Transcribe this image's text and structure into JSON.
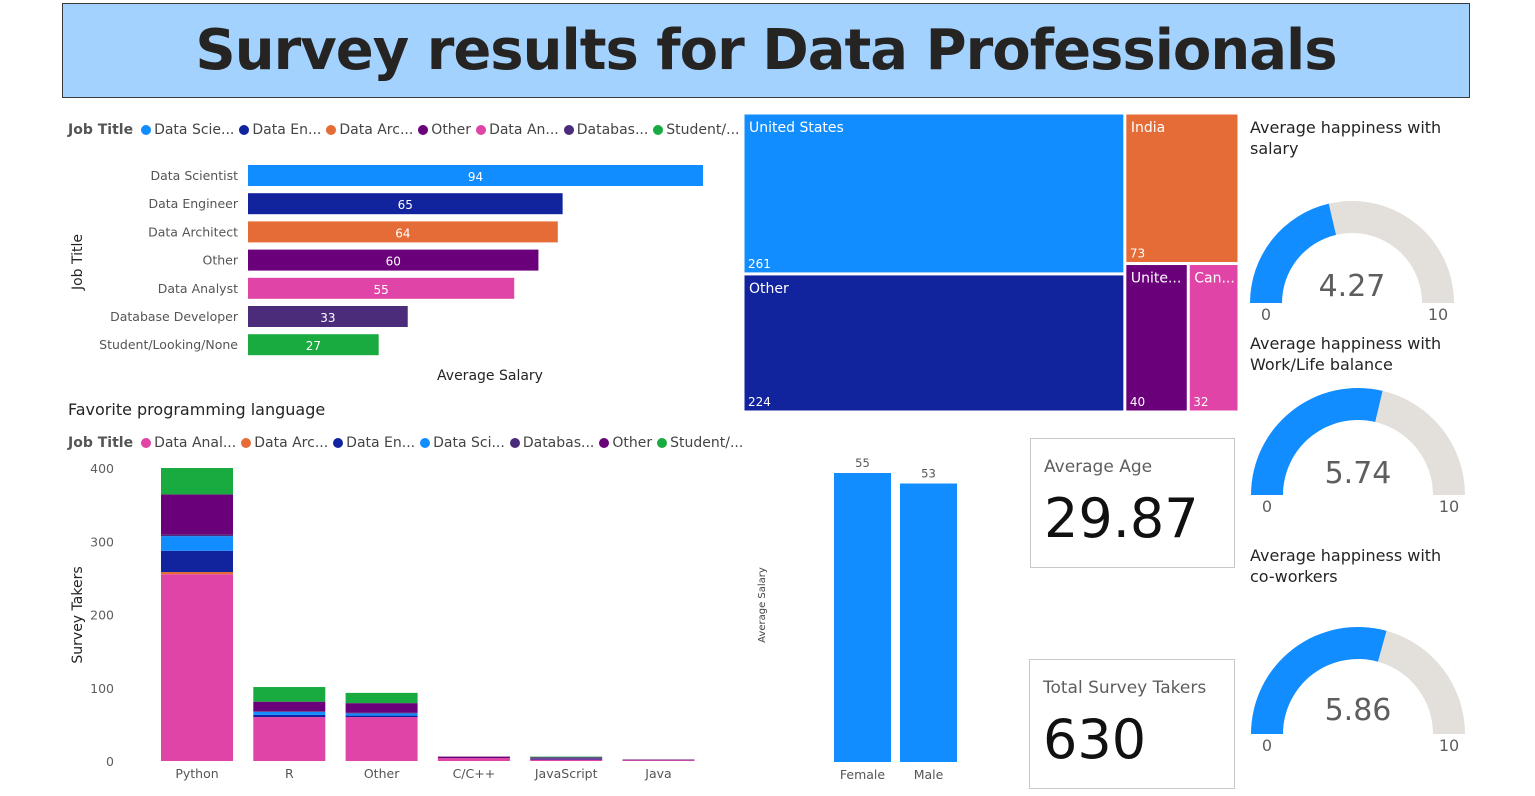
{
  "title": "Survey results for Data Professionals",
  "colors": {
    "Data Scientist": "#118dff",
    "Data Engineer": "#12239e",
    "Data Architect": "#e66c37",
    "Other": "#6b007b",
    "Data Analyst": "#e044a7",
    "Database Developer": "#4a2c7a",
    "Student/Looking/None": "#1aab40",
    "gauge_rest": "#e3dfda"
  },
  "legend1": {
    "title": "Job Title",
    "items": [
      "Data Scie...",
      "Data En...",
      "Data Arc...",
      "Other",
      "Data An...",
      "Databas...",
      "Student/..."
    ],
    "colors": [
      "#118dff",
      "#12239e",
      "#e66c37",
      "#6b007b",
      "#e044a7",
      "#4a2c7a",
      "#1aab40"
    ]
  },
  "legend2": {
    "title": "Job Title",
    "items": [
      "Data Anal...",
      "Data Arc...",
      "Data En...",
      "Data Sci...",
      "Databas...",
      "Other",
      "Student/..."
    ],
    "colors": [
      "#e044a7",
      "#e66c37",
      "#12239e",
      "#118dff",
      "#4a2c7a",
      "#6b007b",
      "#1aab40"
    ]
  },
  "stacked_title": "Favorite programming language",
  "gauges": [
    {
      "title": "Average happiness with salary",
      "value": "4.27",
      "min": "0",
      "max": "10"
    },
    {
      "title": "Average happiness with Work/Life balance",
      "value": "5.74",
      "min": "0",
      "max": "10"
    },
    {
      "title": "Average happiness with co-workers",
      "value": "5.86",
      "min": "0",
      "max": "10"
    }
  ],
  "cards": {
    "age_label": "Average Age",
    "age_value": "29.87",
    "total_label": "Total Survey Takers",
    "total_value": "630"
  },
  "chart_data": [
    {
      "type": "bar",
      "orientation": "horizontal",
      "ylabel": "Job Title",
      "xlabel": "Average Salary",
      "categories": [
        "Data Scientist",
        "Data Engineer",
        "Data Architect",
        "Other",
        "Data Analyst",
        "Database Developer",
        "Student/Looking/None"
      ],
      "values": [
        94,
        65,
        64,
        60,
        55,
        33,
        27
      ],
      "legend_position": "top-left"
    },
    {
      "type": "bar",
      "stacked": true,
      "title": "Favorite programming language",
      "ylabel": "Survey Takers",
      "categories": [
        "Python",
        "R",
        "Other",
        "C/C++",
        "JavaScript",
        "Java"
      ],
      "yticks": [
        0,
        100,
        200,
        300,
        400
      ],
      "ylim": [
        0,
        400
      ],
      "series": [
        {
          "name": "Data Analyst",
          "values": [
            255,
            60,
            60,
            4,
            2,
            1
          ]
        },
        {
          "name": "Data Architect",
          "values": [
            3,
            0,
            0,
            0,
            0,
            0
          ]
        },
        {
          "name": "Data Engineer",
          "values": [
            29,
            3,
            2,
            0,
            1,
            0
          ]
        },
        {
          "name": "Data Scientist",
          "values": [
            20,
            4,
            3,
            0,
            0,
            0
          ]
        },
        {
          "name": "Database Developer",
          "values": [
            2,
            1,
            1,
            0,
            1,
            0
          ]
        },
        {
          "name": "Other",
          "values": [
            55,
            13,
            13,
            2,
            1,
            1
          ]
        },
        {
          "name": "Student/Looking/None",
          "values": [
            36,
            20,
            14,
            0,
            1,
            0
          ]
        }
      ]
    },
    {
      "type": "treemap",
      "items": [
        {
          "label": "United States",
          "value": 261
        },
        {
          "label": "Other",
          "value": 224
        },
        {
          "label": "India",
          "value": 73
        },
        {
          "label": "Unite...",
          "value": 40
        },
        {
          "label": "Can...",
          "value": 32
        }
      ]
    },
    {
      "type": "bar",
      "ylabel": "Average Salary",
      "categories": [
        "Female",
        "Male"
      ],
      "values": [
        55,
        53
      ]
    }
  ]
}
